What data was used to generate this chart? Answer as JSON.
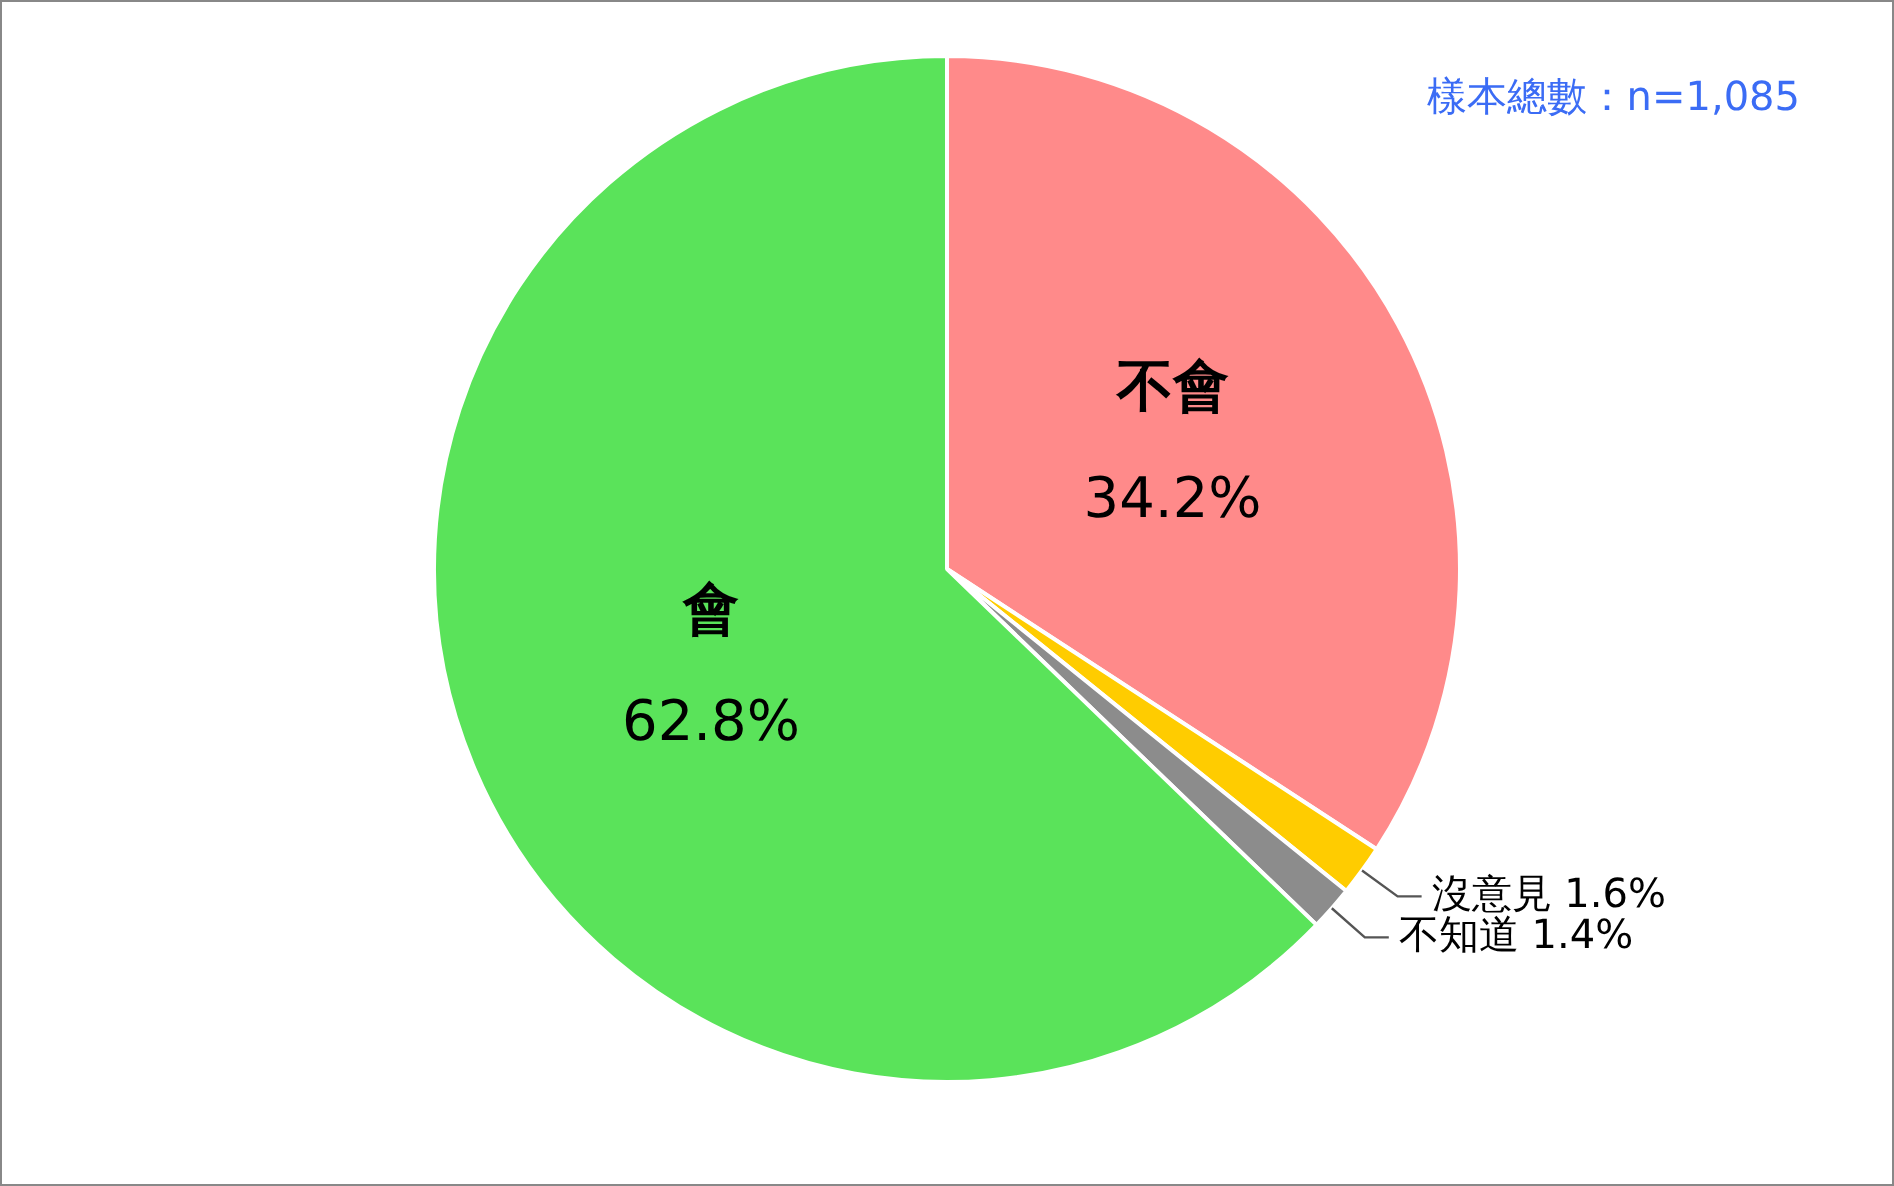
{
  "chart_data": {
    "type": "pie",
    "categories": [
      "不會",
      "沒意見",
      "不知道",
      "會"
    ],
    "values": [
      34.2,
      1.6,
      1.4,
      62.8
    ],
    "colors": [
      "#ff8a8a",
      "#ffcc00",
      "#8c8c8c",
      "#5ae35a"
    ],
    "value_labels": [
      "34.2%",
      "1.6%",
      "1.4%",
      "62.8%"
    ],
    "annotations": [
      "樣本總數：n=1,085"
    ],
    "legend": false
  }
}
